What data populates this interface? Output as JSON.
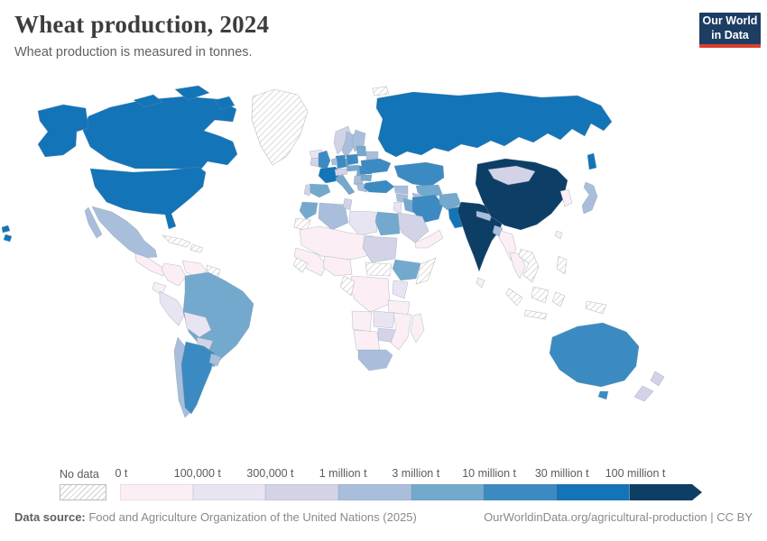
{
  "header": {
    "title": "Wheat production, 2024",
    "subtitle": "Wheat production is measured in tonnes."
  },
  "logo": {
    "line1": "Our World",
    "line2": "in Data",
    "bg_color": "#1d3d63",
    "accent_color": "#d8402f"
  },
  "legend": {
    "no_data_label": "No data",
    "tick_labels": [
      "0 t",
      "100,000 t",
      "300,000 t",
      "1 million t",
      "3 million t",
      "10 million t",
      "30 million t",
      "100 million t"
    ],
    "colors": [
      "#fbeef5",
      "#e9e4f1",
      "#d2d3e7",
      "#a9bedb",
      "#74a9ce",
      "#3b8bc2",
      "#1374b8",
      "#0d3e66"
    ],
    "no_data_hatch_color": "#cfcfcf"
  },
  "chart_data": {
    "type": "choropleth",
    "title": "Wheat production, 2024",
    "unit": "tonnes",
    "year": "2024",
    "projection": "world map",
    "legend_position": "bottom",
    "bin_edges_labels": [
      "0 t",
      "100,000 t",
      "300,000 t",
      "1 million t",
      "3 million t",
      "10 million t",
      "30 million t",
      "100 million t"
    ],
    "bin_colors": [
      "#fbeef5",
      "#e9e4f1",
      "#d2d3e7",
      "#a9bedb",
      "#74a9ce",
      "#3b8bc2",
      "#1374b8",
      "#0d3e66"
    ],
    "no_data_style": "gray diagonal hatching",
    "countries": {
      "canada": 6,
      "united-states": 6,
      "greenland": "no_data",
      "mexico": 3,
      "central-america": 0,
      "caribbean": "no_data",
      "colombia": 0,
      "venezuela": 0,
      "guyanas": "no_data",
      "ecuador": 0,
      "peru": 1,
      "brazil": 4,
      "bolivia": 1,
      "paraguay": 2,
      "chile": 3,
      "argentina": 5,
      "uruguay": 3,
      "iceland": 1,
      "norway": 2,
      "sweden": 3,
      "finland": 3,
      "denmark": 4,
      "united-kingdom": 5,
      "ireland": 2,
      "france": 6,
      "spain": 4,
      "portugal": 2,
      "germany": 5,
      "benelux": 3,
      "poland": 5,
      "czechia-slovakia": 4,
      "austria-switzerland": 2,
      "hungary": 4,
      "italy": 4,
      "balkans": 3,
      "romania": 5,
      "bulgaria": 4,
      "greece": 3,
      "baltics": 4,
      "belarus": 3,
      "ukraine": 5,
      "russia": 6,
      "svalbard": "no_data",
      "kazakhstan": 5,
      "uzbekistan": 4,
      "turkmenistan": 3,
      "caucasus": 3,
      "turkey": 5,
      "syria": 3,
      "iraq": 4,
      "iran": 5,
      "israel-jordan": 1,
      "saudi-arabia": 2,
      "yemen-oman": 0,
      "afghanistan": 4,
      "pakistan": 6,
      "india": 7,
      "nepal": 3,
      "bangladesh": 3,
      "sri-lanka": 0,
      "china": 7,
      "mongolia": 2,
      "korea": 0,
      "japan": 3,
      "taiwan": 0,
      "myanmar": 0,
      "thailand": 0,
      "vietnam-laos-cambodia": "no_data",
      "philippines": "no_data",
      "indonesia": "no_data",
      "papua-new-guinea": "no_data",
      "australia": 5,
      "new-zealand": 2,
      "morocco": 4,
      "algeria": 3,
      "tunisia": 2,
      "libya": 1,
      "egypt": 4,
      "western-sahara": "no_data",
      "sahel": 0,
      "west-africa": 0,
      "guinea-region": "no_data",
      "nigeria-ghana": 0,
      "sudan": 2,
      "ethiopia": 4,
      "somalia": "no_data",
      "south-sudan": "no_data",
      "drc": 0,
      "gabon-congo": "no_data",
      "kenya": 1,
      "tanzania": 0,
      "angola": 0,
      "zambia": 1,
      "zimbabwe": 2,
      "mozambique": 0,
      "namibia-botswana": 0,
      "south-africa": 3,
      "madagascar": 0
    }
  },
  "footer": {
    "source_label": "Data source:",
    "source_text": " Food and Agriculture Organization of the United Nations (2025)",
    "rights_text": "OurWorldinData.org/agricultural-production | CC BY"
  }
}
